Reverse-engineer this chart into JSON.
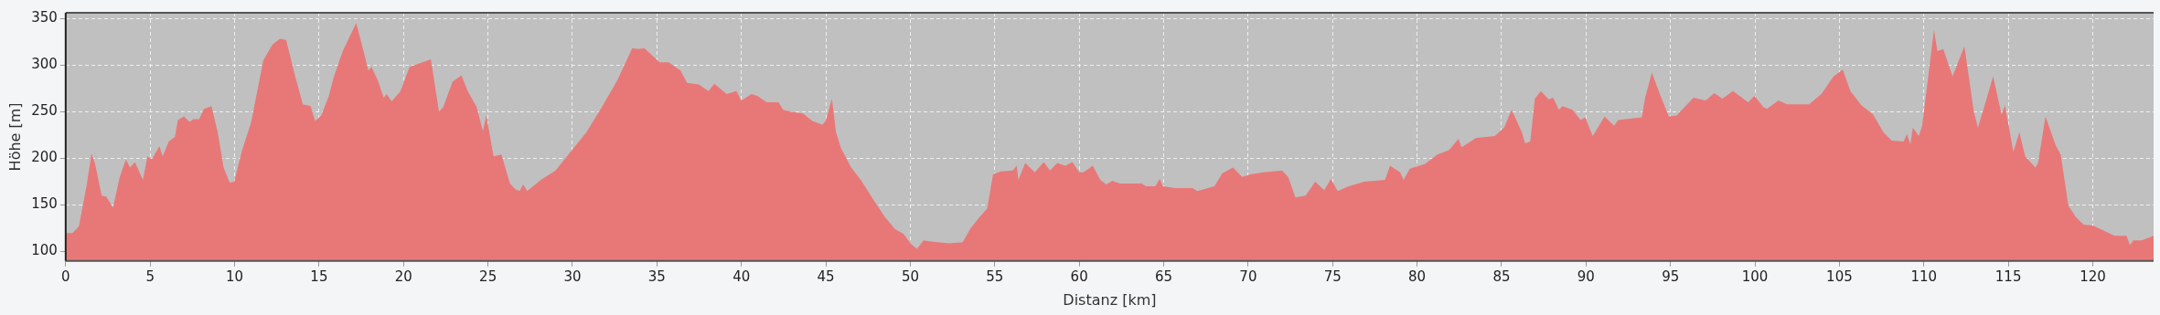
{
  "chart_data": {
    "type": "area",
    "xlabel": "Distanz [km]",
    "ylabel": "Höhe [m]",
    "color": "#e87878",
    "grid": true,
    "xlim": [
      0,
      123.6
    ],
    "ylim": [
      90,
      356
    ],
    "xticks": [
      0,
      5,
      10,
      15,
      20,
      25,
      30,
      35,
      40,
      45,
      50,
      55,
      60,
      65,
      70,
      75,
      80,
      85,
      90,
      95,
      100,
      105,
      110,
      115,
      120
    ],
    "yticks": [
      100,
      150,
      200,
      250,
      300,
      350
    ],
    "x": [
      0,
      0.4,
      0.78,
      1.23,
      1.53,
      1.73,
      2.13,
      2.4,
      2.8,
      3.2,
      3.57,
      3.8,
      4.1,
      4.57,
      4.84,
      5.1,
      5.55,
      5.74,
      6.1,
      6.46,
      6.64,
      7.0,
      7.33,
      7.55,
      7.9,
      8.18,
      8.63,
      9.0,
      9.35,
      9.71,
      9.98,
      10.43,
      10.97,
      11.7,
      12.24,
      12.69,
      13.05,
      13.6,
      14.04,
      14.5,
      14.77,
      15.13,
      15.58,
      15.85,
      16.4,
      17.2,
      17.56,
      17.92,
      18.1,
      18.47,
      18.83,
      19.0,
      19.3,
      19.82,
      20.36,
      20.81,
      21.62,
      22.1,
      22.35,
      22.9,
      23.43,
      23.8,
      24.33,
      24.7,
      24.9,
      25.33,
      25.8,
      26.3,
      26.6,
      26.87,
      27.08,
      27.32,
      28.13,
      29.0,
      29.93,
      30.83,
      31.74,
      32.64,
      33.54,
      33.9,
      34.26,
      35.16,
      35.7,
      36.4,
      36.78,
      37.5,
      38.05,
      38.4,
      39.13,
      39.7,
      40.0,
      40.6,
      40.94,
      41.5,
      42.2,
      42.47,
      42.9,
      43.65,
      44.2,
      44.8,
      44.99,
      45.36,
      45.6,
      45.9,
      46.5,
      47.07,
      47.8,
      48.5,
      49.1,
      49.6,
      50.06,
      50.4,
      50.78,
      51.59,
      52.3,
      53.1,
      53.57,
      54.1,
      54.55,
      54.9,
      55.35,
      56.07,
      56.3,
      56.4,
      56.8,
      57.37,
      57.9,
      58.27,
      58.7,
      59.17,
      59.6,
      60.0,
      60.25,
      60.8,
      61.25,
      61.6,
      61.96,
      62.4,
      63.7,
      63.95,
      64.5,
      64.77,
      64.95,
      65.7,
      66.7,
      67.0,
      68.0,
      68.47,
      69.1,
      69.64,
      70.18,
      70.9,
      72.0,
      72.37,
      72.8,
      73.4,
      73.97,
      74.5,
      74.9,
      75.3,
      75.95,
      76.86,
      78.1,
      78.4,
      79.0,
      79.2,
      79.57,
      80.47,
      81.2,
      81.9,
      82.45,
      82.64,
      83.5,
      84.6,
      85.15,
      85.6,
      86.2,
      86.4,
      86.7,
      86.97,
      87.33,
      87.8,
      88.05,
      88.4,
      88.6,
      89.2,
      89.68,
      89.95,
      90.4,
      91.1,
      91.66,
      91.9,
      93.3,
      93.5,
      93.9,
      94.37,
      94.9,
      95.36,
      96.36,
      97.08,
      97.6,
      98.07,
      98.7,
      99.6,
      99.97,
      100.5,
      100.7,
      101.4,
      101.9,
      103.2,
      103.93,
      104.66,
      105.2,
      105.65,
      106.3,
      107.0,
      107.6,
      108.1,
      108.8,
      109.0,
      109.2,
      109.35,
      109.7,
      109.9,
      110.6,
      110.8,
      111.15,
      111.7,
      112.4,
      112.96,
      113.2,
      113.6,
      114.1,
      114.6,
      114.8,
      115.3,
      115.65,
      116.0,
      116.6,
      116.76,
      117.2,
      117.8,
      118.1,
      118.56,
      119.0,
      119.45,
      120.0,
      121.3,
      122.0,
      122.2,
      122.4,
      122.9,
      123.6
    ],
    "values": [
      120,
      120,
      127,
      170,
      205,
      195,
      160,
      159,
      147,
      180,
      199,
      190,
      196,
      177,
      202,
      199,
      213,
      202,
      218,
      223,
      241,
      245,
      239,
      242,
      242,
      253,
      256,
      228,
      190,
      174,
      175,
      208,
      238,
      305,
      322,
      328,
      327,
      287,
      258,
      256,
      240,
      246,
      267,
      286,
      315,
      345,
      320,
      294,
      298,
      284,
      265,
      269,
      261,
      272,
      298,
      301,
      306,
      250,
      255,
      282,
      289,
      272,
      255,
      229,
      246,
      202,
      204,
      173,
      167,
      165,
      172,
      165,
      177,
      187,
      208,
      228,
      255,
      283,
      318,
      317,
      318,
      303,
      303,
      294,
      281,
      279,
      272,
      280,
      269,
      272,
      262,
      269,
      267,
      260,
      260,
      252,
      250,
      248,
      240,
      236,
      240,
      264,
      228,
      211,
      190,
      177,
      156,
      137,
      124,
      119,
      108,
      103,
      112,
      110,
      109,
      110,
      125,
      137,
      146,
      183,
      186,
      187,
      192,
      177,
      195,
      185,
      196,
      187,
      195,
      192,
      196,
      185,
      185,
      192,
      177,
      172,
      176,
      173,
      173,
      170,
      170,
      178,
      170,
      168,
      168,
      165,
      170,
      184,
      190,
      180,
      183,
      185,
      187,
      180,
      158,
      160,
      175,
      166,
      178,
      165,
      170,
      175,
      177,
      192,
      185,
      177,
      189,
      194,
      204,
      209,
      221,
      212,
      222,
      224,
      233,
      252,
      228,
      216,
      218,
      264,
      272,
      263,
      265,
      252,
      256,
      252,
      241,
      244,
      224,
      245,
      235,
      241,
      244,
      265,
      292,
      269,
      245,
      246,
      265,
      262,
      270,
      264,
      272,
      260,
      267,
      255,
      253,
      262,
      258,
      258,
      269,
      288,
      295,
      272,
      257,
      247,
      228,
      219,
      218,
      226,
      215,
      233,
      224,
      235,
      338,
      315,
      317,
      288,
      320,
      250,
      233,
      257,
      288,
      247,
      257,
      207,
      228,
      202,
      190,
      195,
      245,
      214,
      204,
      149,
      137,
      129,
      128,
      117,
      117,
      107,
      112,
      112,
      117
    ]
  }
}
